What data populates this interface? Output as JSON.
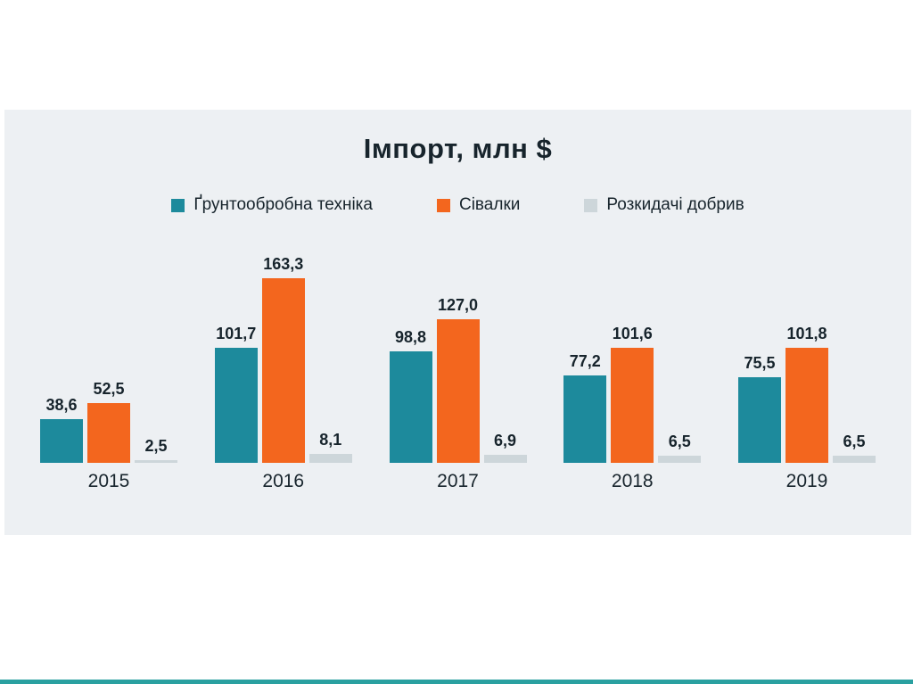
{
  "page": {
    "background": "#ffffff",
    "accent_bar_color": "#2aa0a0"
  },
  "chart_data": {
    "type": "bar",
    "title": "Імпорт, млн $",
    "panel_background": "#edf0f3",
    "legend_position": "top",
    "grid": false,
    "categories": [
      "2015",
      "2016",
      "2017",
      "2018",
      "2019"
    ],
    "series": [
      {
        "name": "Ґрунтообробна техніка",
        "color": "#1d8a9c",
        "values": [
          38.6,
          101.7,
          98.8,
          77.2,
          75.5
        ],
        "labels": [
          "38,6",
          "101,7",
          "98,8",
          "77,2",
          "75,5"
        ]
      },
      {
        "name": "Сівалки",
        "color": "#f3661e",
        "values": [
          52.5,
          163.3,
          127.0,
          101.6,
          101.8
        ],
        "labels": [
          "52,5",
          "163,3",
          "127,0",
          "101,6",
          "101,8"
        ]
      },
      {
        "name": "Розкидачі добрив",
        "color": "#cdd6da",
        "values": [
          2.5,
          8.1,
          6.9,
          6.5,
          6.5
        ],
        "labels": [
          "2,5",
          "8,1",
          "6,9",
          "6,5",
          "6,5"
        ]
      }
    ]
  }
}
